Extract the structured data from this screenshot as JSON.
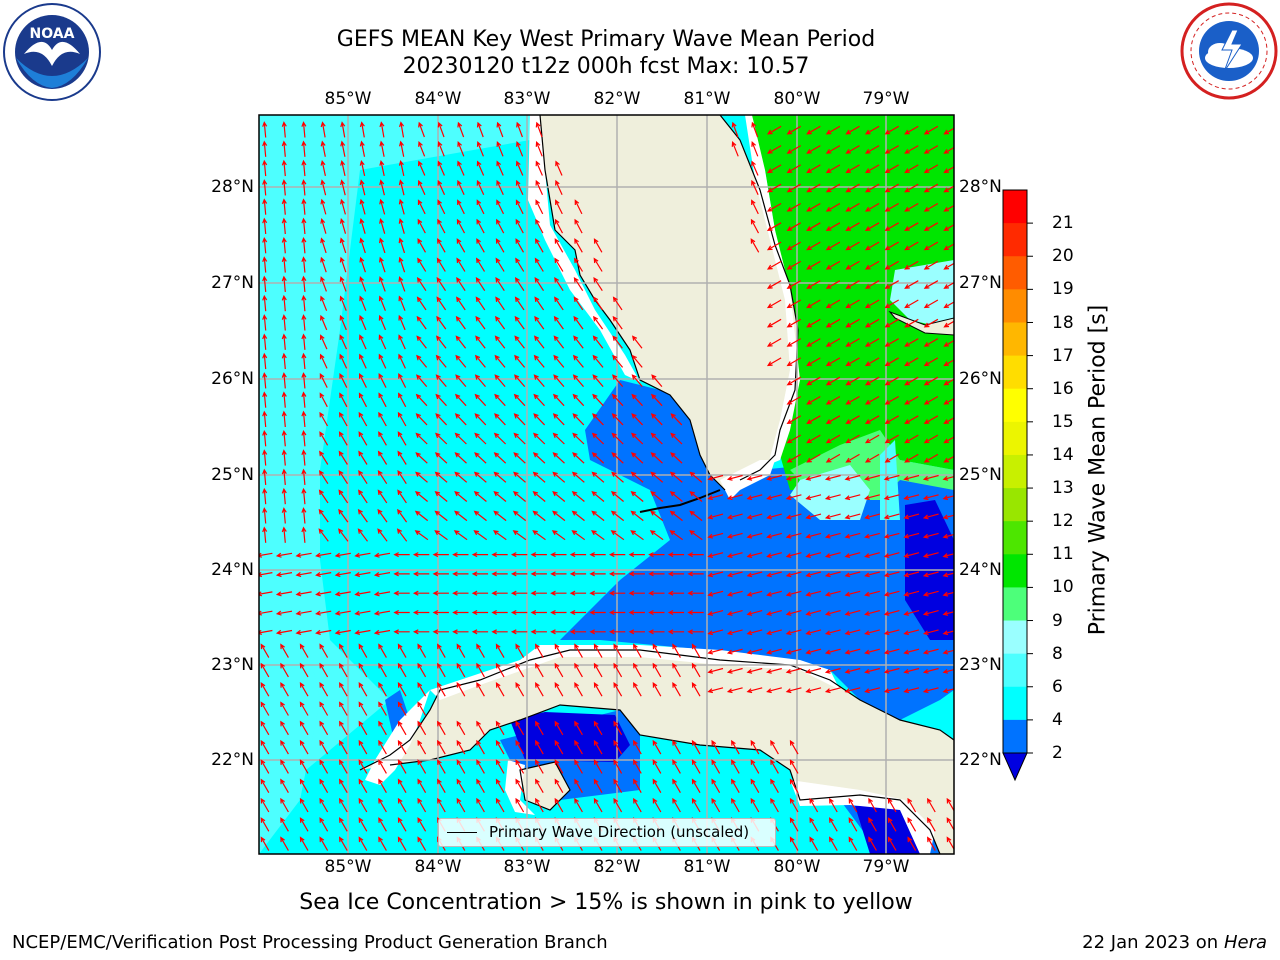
{
  "title": {
    "line1": "GEFS MEAN Key West Primary Wave Mean Period",
    "line2": "20230120 t12z 000h fcst   Max: 10.57"
  },
  "logos": {
    "noaa": {
      "text": "NOAA",
      "ring_text": "NATIONAL OCEANIC AND ATMOSPHERIC ADMINISTRATION · U.S. DEPARTMENT OF COMMERCE"
    },
    "nws": {
      "ring_text": "NATIONAL WEATHER SERVICE"
    }
  },
  "map": {
    "lon_labels": [
      "85°W",
      "84°W",
      "83°W",
      "82°W",
      "81°W",
      "80°W",
      "79°W"
    ],
    "lat_labels": [
      "22°N",
      "23°N",
      "24°N",
      "25°N",
      "26°N",
      "27°N",
      "28°N"
    ],
    "land_color": "#efefdc",
    "arrow_color": "#ff0000",
    "grid_color": "#b0b0b0",
    "legend_label": "Primary Wave Direction (unscaled)"
  },
  "colorbar": {
    "label": "Primary Wave Mean Period [s]",
    "ticks": [
      "2",
      "4",
      "6",
      "8",
      "9",
      "10",
      "11",
      "12",
      "13",
      "14",
      "15",
      "16",
      "17",
      "18",
      "19",
      "20",
      "21"
    ],
    "colors": [
      "#0000e0",
      "#0073ff",
      "#00ffff",
      "#4dffff",
      "#9affff",
      "#4dff7a",
      "#00e600",
      "#4de600",
      "#99e600",
      "#c8f000",
      "#ecf500",
      "#ffff00",
      "#ffdd00",
      "#ffb700",
      "#ff8c00",
      "#ff5c00",
      "#ff2a00",
      "#ff0000"
    ]
  },
  "caption": "Sea Ice Concentration > 15% is shown in pink to yellow",
  "footer": {
    "left": "NCEP/EMC/Verification Post Processing Product Generation Branch",
    "right_date": "22 Jan 2023 on ",
    "right_host": "Hera"
  }
}
